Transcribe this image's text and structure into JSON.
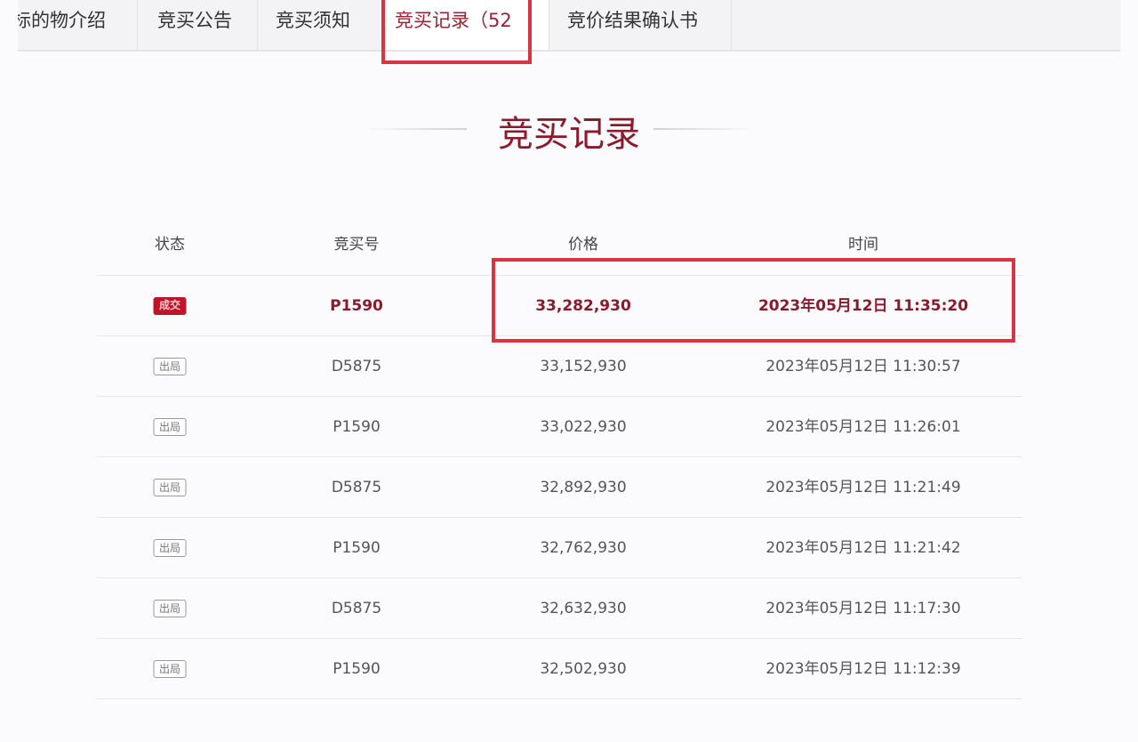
{
  "tabs": [
    {
      "label": "标的物介绍"
    },
    {
      "label": "竞买公告"
    },
    {
      "label": "竞买须知"
    },
    {
      "label": "竞买记录（52"
    },
    {
      "label": "竞价结果确认书"
    }
  ],
  "title": "竞买记录",
  "columns": [
    "状态",
    "竞买号",
    "价格",
    "时间"
  ],
  "rows": [
    {
      "status": "成交",
      "bidder": "P1590",
      "price": "33,282,930",
      "time": "2023年05月12日 11:35:20"
    },
    {
      "status": "出局",
      "bidder": "D5875",
      "price": "33,152,930",
      "time": "2023年05月12日 11:30:57"
    },
    {
      "status": "出局",
      "bidder": "P1590",
      "price": "33,022,930",
      "time": "2023年05月12日 11:26:01"
    },
    {
      "status": "出局",
      "bidder": "D5875",
      "price": "32,892,930",
      "time": "2023年05月12日 11:21:49"
    },
    {
      "status": "出局",
      "bidder": "P1590",
      "price": "32,762,930",
      "time": "2023年05月12日 11:21:42"
    },
    {
      "status": "出局",
      "bidder": "D5875",
      "price": "32,632,930",
      "time": "2023年05月12日 11:17:30"
    },
    {
      "status": "出局",
      "bidder": "P1590",
      "price": "32,502,930",
      "time": "2023年05月12日 11:12:39"
    }
  ],
  "colors": {
    "accent": "#8b1a2b",
    "highlight": "#d9343f",
    "win_badge": "#c0142a"
  }
}
